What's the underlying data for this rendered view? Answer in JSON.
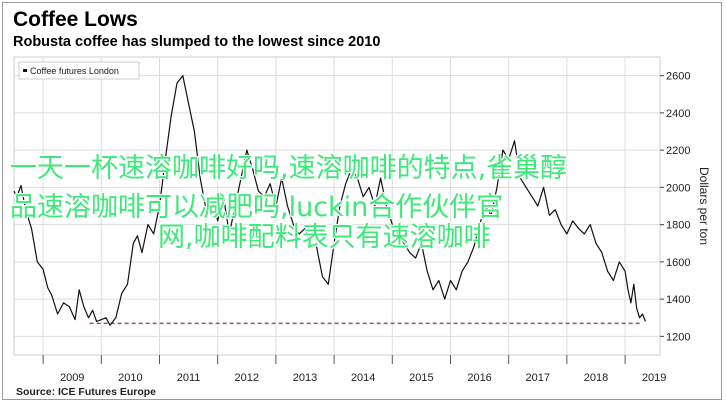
{
  "header": {
    "title": "Coffee Lows",
    "subtitle": "Robusta coffee has slumped to the lowest since 2010"
  },
  "footer": {
    "source": "Source: ICE Futures Europe"
  },
  "overlay": {
    "lines": [
      "一天一杯速溶咖啡好吗,速溶咖啡的特点,雀巢醇",
      "品速溶咖啡可以减肥吗,luckin合作伙伴官",
      "网,咖啡配料表只有速溶咖啡"
    ]
  },
  "colors": {
    "series": "#111111",
    "reference_line": "#b0437b",
    "grid": "#dddddd",
    "overlay_text": "#3fe87a"
  },
  "chart_data": {
    "type": "line",
    "title": "Coffee Lows",
    "subtitle": "Robusta coffee has slumped to the lowest since 2010",
    "ylabel": "Dollars per ton",
    "xlabel": "",
    "ylim": [
      1100,
      2700
    ],
    "xlim": [
      2008.5,
      2019.6
    ],
    "y_ticks": [
      1200,
      1400,
      1600,
      1800,
      2000,
      2200,
      2400,
      2600
    ],
    "x_tick_labels": [
      "2009",
      "2010",
      "2011",
      "2012",
      "2013",
      "2014",
      "2015",
      "2016",
      "2017",
      "2018",
      "2019"
    ],
    "grid": true,
    "legend": {
      "position": "top-left",
      "entries": [
        "Coffee futures London"
      ]
    },
    "series": [
      {
        "name": "Coffee futures London",
        "x": [
          2008.5,
          2008.55,
          2008.62,
          2008.7,
          2008.8,
          2008.9,
          2009.0,
          2009.08,
          2009.15,
          2009.25,
          2009.35,
          2009.45,
          2009.55,
          2009.62,
          2009.7,
          2009.78,
          2009.85,
          2009.92,
          2010.0,
          2010.08,
          2010.15,
          2010.25,
          2010.35,
          2010.45,
          2010.55,
          2010.62,
          2010.7,
          2010.8,
          2010.9,
          2011.0,
          2011.1,
          2011.2,
          2011.3,
          2011.4,
          2011.5,
          2011.6,
          2011.7,
          2011.8,
          2011.9,
          2012.0,
          2012.1,
          2012.2,
          2012.3,
          2012.4,
          2012.5,
          2012.6,
          2012.7,
          2012.8,
          2012.9,
          2013.0,
          2013.1,
          2013.2,
          2013.3,
          2013.4,
          2013.5,
          2013.6,
          2013.7,
          2013.8,
          2013.9,
          2014.0,
          2014.1,
          2014.2,
          2014.3,
          2014.4,
          2014.5,
          2014.6,
          2014.7,
          2014.8,
          2014.9,
          2015.0,
          2015.1,
          2015.2,
          2015.3,
          2015.4,
          2015.5,
          2015.6,
          2015.7,
          2015.8,
          2015.9,
          2016.0,
          2016.1,
          2016.2,
          2016.3,
          2016.4,
          2016.5,
          2016.6,
          2016.7,
          2016.8,
          2016.9,
          2017.0,
          2017.1,
          2017.2,
          2017.3,
          2017.4,
          2017.5,
          2017.6,
          2017.7,
          2017.8,
          2017.9,
          2018.0,
          2018.1,
          2018.2,
          2018.3,
          2018.4,
          2018.5,
          2018.6,
          2018.7,
          2018.8,
          2018.9,
          2019.0,
          2019.05,
          2019.1,
          2019.15,
          2019.2,
          2019.25,
          2019.3,
          2019.35
        ],
        "values": [
          1980,
          1950,
          2010,
          1880,
          1780,
          1600,
          1560,
          1460,
          1420,
          1320,
          1380,
          1360,
          1290,
          1450,
          1360,
          1300,
          1340,
          1280,
          1290,
          1300,
          1260,
          1300,
          1430,
          1480,
          1700,
          1740,
          1650,
          1800,
          1750,
          1900,
          2150,
          2380,
          2560,
          2600,
          2450,
          2300,
          2050,
          1880,
          1950,
          1820,
          1950,
          1750,
          1900,
          2050,
          2200,
          2100,
          1980,
          1950,
          2020,
          1900,
          2050,
          1900,
          1800,
          1750,
          1780,
          1700,
          1680,
          1520,
          1480,
          1700,
          1900,
          2020,
          2100,
          2050,
          1950,
          2000,
          1900,
          2050,
          1900,
          1800,
          1750,
          1700,
          1650,
          1620,
          1700,
          1550,
          1450,
          1500,
          1400,
          1500,
          1450,
          1550,
          1600,
          1680,
          1800,
          1900,
          1850,
          2000,
          2200,
          2150,
          2250,
          2050,
          2000,
          1950,
          1900,
          2000,
          1850,
          1880,
          1800,
          1750,
          1820,
          1780,
          1750,
          1800,
          1700,
          1650,
          1550,
          1500,
          1600,
          1550,
          1450,
          1380,
          1480,
          1350,
          1300,
          1320,
          1280
        ]
      }
    ],
    "reference_line": {
      "y": 1270,
      "x_start": 2009.8,
      "x_end": 2019.3,
      "style": "dashed"
    }
  }
}
